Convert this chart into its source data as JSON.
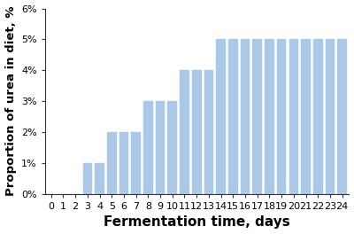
{
  "days": [
    0,
    1,
    2,
    3,
    4,
    5,
    6,
    7,
    8,
    9,
    10,
    11,
    12,
    13,
    14,
    15,
    16,
    17,
    18,
    19,
    20,
    21,
    22,
    23,
    24
  ],
  "values": [
    0,
    0,
    0,
    1,
    1,
    2,
    2,
    2,
    3,
    3,
    3,
    4,
    4,
    4,
    5,
    5,
    5,
    5,
    5,
    5,
    5,
    5,
    5,
    5,
    5
  ],
  "bar_color": "#aac8e8",
  "bar_edgecolor": "#aac8e8",
  "xlabel": "Fermentation time, days",
  "ylabel": "Proportion of urea in diet, %",
  "xlim": [
    -0.5,
    24.5
  ],
  "ylim": [
    0,
    6
  ],
  "yticks": [
    0,
    1,
    2,
    3,
    4,
    5,
    6
  ],
  "ytick_labels": [
    "0%",
    "1%",
    "2%",
    "3%",
    "4%",
    "5%",
    "6%"
  ],
  "xticks": [
    0,
    1,
    2,
    3,
    4,
    5,
    6,
    7,
    8,
    9,
    10,
    11,
    12,
    13,
    14,
    15,
    16,
    17,
    18,
    19,
    20,
    21,
    22,
    23,
    24
  ],
  "bar_width": 0.78,
  "figsize": [
    4.0,
    2.64
  ],
  "dpi": 100,
  "xlabel_fontsize": 11,
  "ylabel_fontsize": 9.5,
  "tick_fontsize": 8,
  "spine_color": "#333333"
}
